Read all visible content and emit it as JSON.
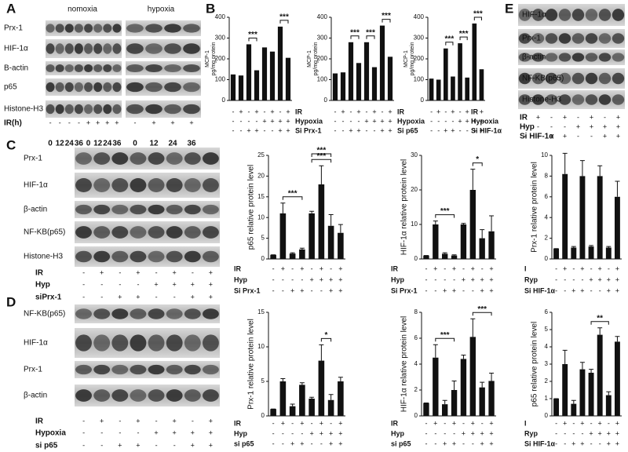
{
  "panel_letters": [
    "A",
    "B",
    "C",
    "D",
    "E"
  ],
  "blots": [
    {
      "headers": [
        "nomoxia",
        "hypoxia"
      ],
      "rows": [
        "Prx-1",
        "HIF-1α",
        "B-actin",
        "p65",
        "Histone-H3"
      ],
      "conditions": [
        {
          "label": "IR(h)",
          "signs": [
            "-",
            "-",
            "-",
            "-",
            "+",
            "+",
            "+",
            "+",
            "-",
            "+",
            "+",
            "+"
          ]
        }
      ],
      "times": [
        "0",
        "12",
        "24",
        "36",
        "0",
        "12",
        "24",
        "36",
        "0",
        "12",
        "24",
        "36"
      ]
    },
    {
      "rows": [
        "Prx-1",
        "HIF-1α",
        "β-actin",
        "NF-KB(p65)",
        "Histone-H3"
      ],
      "conditions": [
        {
          "label": "IR",
          "signs": [
            "-",
            "+",
            "-",
            "+",
            "-",
            "+",
            "-",
            "+"
          ]
        },
        {
          "label": "Hyp",
          "signs": [
            "-",
            "-",
            "-",
            "-",
            "+",
            "+",
            "+",
            "+"
          ]
        },
        {
          "label": "siPrx-1",
          "signs": [
            "-",
            "-",
            "+",
            "+",
            "-",
            "-",
            "+",
            "+"
          ]
        }
      ]
    },
    {
      "rows": [
        "NF-KB(p65)",
        "HIF-1α",
        "Prx-1",
        "β-actin"
      ],
      "conditions": [
        {
          "label": "IR",
          "signs": [
            "-",
            "+",
            "-",
            "+",
            "-",
            "+",
            "-",
            "+"
          ]
        },
        {
          "label": "Hypoxia",
          "signs": [
            "-",
            "-",
            "-",
            "-",
            "+",
            "+",
            "+",
            "+"
          ]
        },
        {
          "label": "si p65",
          "signs": [
            "-",
            "-",
            "+",
            "+",
            "-",
            "-",
            "+",
            "+"
          ]
        }
      ]
    },
    {
      "rows": [
        "HIF-1α",
        "Prx-1",
        "β-actin",
        "NF-KB(p65)",
        "Histone-H3"
      ],
      "conditions": [
        {
          "label": "IR",
          "signs": [
            "-",
            "+",
            "-",
            "+",
            "-",
            "+",
            "-",
            "+"
          ]
        },
        {
          "label": "Hyp",
          "signs": [
            "-",
            "-",
            "-",
            "-",
            "+",
            "+",
            "+",
            "+"
          ]
        },
        {
          "label": "Si HIF-1α",
          "signs": [
            "-",
            "-",
            "+",
            "+",
            "-",
            "-",
            "+",
            "+"
          ]
        }
      ]
    }
  ],
  "chart_data": [
    {
      "type": "bar",
      "ylabel": [
        "MCP-1",
        "pg/mg protein"
      ],
      "values": [
        125,
        120,
        270,
        145,
        255,
        235,
        355,
        205
      ],
      "color": "#111111",
      "ylim": [
        0,
        400
      ],
      "yticks": [
        0,
        100,
        200,
        300,
        400
      ],
      "annotations": [
        "***",
        "***"
      ],
      "conditions": [
        {
          "label": "IR",
          "signs": [
            "-",
            "+",
            "-",
            "+",
            "-",
            "+",
            "-",
            "+"
          ]
        },
        {
          "label": "Hypoxia",
          "signs": [
            "-",
            "-",
            "-",
            "-",
            "+",
            "+",
            "+",
            "+"
          ]
        },
        {
          "label": "Si Prx-1",
          "signs": [
            "-",
            "-",
            "+",
            "+",
            "-",
            "-",
            "+",
            "+"
          ]
        }
      ]
    },
    {
      "type": "bar",
      "ylabel": [
        "MCP-1",
        "pg/mg protein"
      ],
      "values": [
        130,
        135,
        280,
        180,
        280,
        160,
        360,
        210
      ],
      "color": "#111111",
      "ylim": [
        0,
        400
      ],
      "yticks": [
        0,
        100,
        200,
        300,
        400
      ],
      "annotations": [
        "***",
        "***",
        "***"
      ],
      "conditions": [
        {
          "label": "IR",
          "signs": [
            "-",
            "+",
            "-",
            "+",
            "-",
            "+",
            "-",
            "+"
          ]
        },
        {
          "label": "Hypoxia",
          "signs": [
            "-",
            "-",
            "-",
            "-",
            "+",
            "+",
            "+",
            "+"
          ]
        },
        {
          "label": "Si p65",
          "signs": [
            "-",
            "-",
            "+",
            "+",
            "-",
            "-",
            "+",
            "+"
          ]
        }
      ]
    },
    {
      "type": "bar",
      "ylabel": [
        "MCP-1",
        "pg/mg protein"
      ],
      "values": [
        105,
        100,
        250,
        115,
        275,
        110,
        370,
        150
      ],
      "color": "#111111",
      "ylim": [
        0,
        400
      ],
      "yticks": [
        0,
        100,
        200,
        300,
        400
      ],
      "annotations": [
        "***",
        "***",
        "***"
      ],
      "conditions": [
        {
          "label": "IR",
          "signs": [
            "-",
            "+",
            "-",
            "+",
            "-",
            "+",
            "-",
            "+"
          ]
        },
        {
          "label": "Hypoxia",
          "signs": [
            "-",
            "-",
            "-",
            "-",
            "+",
            "+",
            "+",
            "+"
          ]
        },
        {
          "label": "Si HIF-1α",
          "signs": [
            "-",
            "-",
            "+",
            "+",
            "-",
            "-",
            "+",
            "+"
          ]
        }
      ]
    },
    {
      "type": "bar",
      "ylabel": "p65 relative protein level",
      "values": [
        1,
        11,
        1.3,
        2.3,
        11,
        18,
        8,
        6.3
      ],
      "errors": [
        0,
        2.5,
        0.2,
        0.3,
        0.5,
        4.5,
        2.7,
        2
      ],
      "color": "#111111",
      "ylim": [
        0,
        25
      ],
      "yticks": [
        0,
        5,
        10,
        15,
        20,
        25
      ],
      "annotations": [
        "***",
        "***",
        "***"
      ],
      "conditions": [
        {
          "label": "IR",
          "signs": [
            "-",
            "+",
            "-",
            "+",
            "-",
            "+",
            "-",
            "+"
          ]
        },
        {
          "label": "Hyp",
          "signs": [
            "-",
            "-",
            "-",
            "-",
            "+",
            "+",
            "+",
            "+"
          ]
        },
        {
          "label": "Si Prx-1",
          "signs": [
            "-",
            "-",
            "+",
            "+",
            "-",
            "-",
            "+",
            "+"
          ]
        }
      ]
    },
    {
      "type": "bar",
      "ylabel": "HIF-1α relative protein level",
      "values": [
        1,
        10,
        1.5,
        1,
        10,
        20,
        6,
        8
      ],
      "errors": [
        0,
        1,
        0.3,
        0.2,
        0.3,
        6,
        2.5,
        4.5
      ],
      "color": "#111111",
      "ylim": [
        0,
        30
      ],
      "yticks": [
        0,
        10,
        20,
        30
      ],
      "annotations": [
        "***",
        "*"
      ],
      "conditions": [
        {
          "label": "IR",
          "signs": [
            "-",
            "+",
            "-",
            "+",
            "-",
            "+",
            "-",
            "+"
          ]
        },
        {
          "label": "Hyp",
          "signs": [
            "-",
            "-",
            "-",
            "-",
            "+",
            "+",
            "+",
            "+"
          ]
        },
        {
          "label": "Si Prx-1",
          "signs": [
            "-",
            "-",
            "+",
            "+",
            "-",
            "-",
            "+",
            "+"
          ]
        }
      ]
    },
    {
      "type": "bar",
      "ylabel": "Prx-1 relative protein level",
      "values": [
        1,
        8.2,
        1.1,
        8,
        1.2,
        8,
        1.1,
        6
      ],
      "errors": [
        0,
        2,
        0.1,
        1.5,
        0.1,
        1,
        0.1,
        1.5
      ],
      "color": "#111111",
      "ylim": [
        0,
        10
      ],
      "yticks": [
        0,
        2,
        4,
        6,
        8,
        10
      ],
      "annotations": [],
      "conditions": [
        {
          "label": "I",
          "signs": [
            "-",
            "+",
            "-",
            "+",
            "-",
            "+",
            "-",
            "+"
          ]
        },
        {
          "label": "Ryp",
          "signs": [
            "-",
            "-",
            "-",
            "-",
            "+",
            "+",
            "+",
            "+"
          ]
        },
        {
          "label": "Si HIF-1α",
          "signs": [
            "-",
            "-",
            "+",
            "+",
            "-",
            "-",
            "+",
            "+"
          ]
        }
      ]
    },
    {
      "type": "bar",
      "ylabel": "Prx-1 relative protein level",
      "values": [
        1,
        5,
        1.4,
        4.5,
        2.5,
        8,
        2.3,
        5
      ],
      "errors": [
        0,
        0.4,
        0.3,
        0.3,
        0.2,
        2.3,
        0.8,
        0.6
      ],
      "color": "#111111",
      "ylim": [
        0,
        15
      ],
      "yticks": [
        0,
        5,
        10,
        15
      ],
      "annotations": [
        "*"
      ],
      "conditions": [
        {
          "label": "IR",
          "signs": [
            "-",
            "+",
            "-",
            "+",
            "-",
            "+",
            "-",
            "+"
          ]
        },
        {
          "label": "Hyp",
          "signs": [
            "-",
            "-",
            "-",
            "-",
            "+",
            "+",
            "+",
            "+"
          ]
        },
        {
          "label": "si p65",
          "signs": [
            "-",
            "-",
            "+",
            "+",
            "-",
            "-",
            "+",
            "+"
          ]
        }
      ]
    },
    {
      "type": "bar",
      "ylabel": "HIF-1α relative protein level",
      "values": [
        1,
        4.5,
        0.9,
        2,
        4.4,
        6.1,
        2.2,
        2.7
      ],
      "errors": [
        0,
        1,
        0.3,
        0.7,
        0.3,
        1.4,
        0.4,
        0.6
      ],
      "color": "#111111",
      "ylim": [
        0,
        8
      ],
      "yticks": [
        0,
        2,
        4,
        6,
        8
      ],
      "annotations": [
        "***",
        "***"
      ],
      "conditions": [
        {
          "label": "IR",
          "signs": [
            "-",
            "+",
            "-",
            "+",
            "-",
            "+",
            "-",
            "+"
          ]
        },
        {
          "label": "Hyp",
          "signs": [
            "-",
            "-",
            "-",
            "-",
            "+",
            "+",
            "+",
            "+"
          ]
        },
        {
          "label": "si p65",
          "signs": [
            "-",
            "-",
            "+",
            "+",
            "-",
            "-",
            "+",
            "+"
          ]
        }
      ]
    },
    {
      "type": "bar",
      "ylabel": "p65 relative protein level",
      "values": [
        1,
        3,
        0.7,
        2.7,
        2.5,
        4.7,
        1.2,
        4.3
      ],
      "errors": [
        0,
        0.8,
        0.2,
        0.4,
        0.2,
        0.4,
        0.2,
        0.3
      ],
      "color": "#111111",
      "ylim": [
        0,
        6
      ],
      "yticks": [
        0,
        1,
        2,
        3,
        4,
        5,
        6
      ],
      "annotations": [
        "**"
      ],
      "conditions": [
        {
          "label": "I",
          "signs": [
            "-",
            "+",
            "-",
            "+",
            "-",
            "+",
            "-",
            "+"
          ]
        },
        {
          "label": "Ryp",
          "signs": [
            "-",
            "-",
            "-",
            "-",
            "+",
            "+",
            "+",
            "+"
          ]
        },
        {
          "label": "Si HIF-1α",
          "signs": [
            "-",
            "-",
            "+",
            "+",
            "-",
            "-",
            "+",
            "+"
          ]
        }
      ]
    }
  ]
}
